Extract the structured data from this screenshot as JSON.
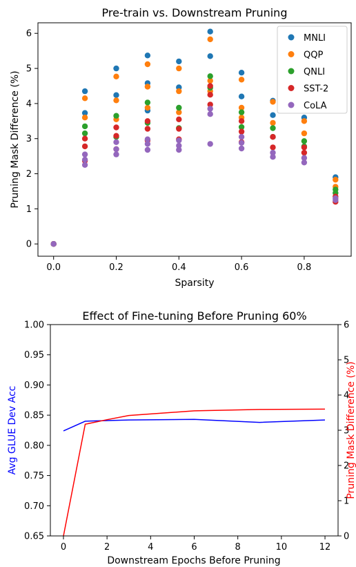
{
  "chart_data": [
    {
      "type": "scatter",
      "title": "Pre-train vs. Downstream Pruning",
      "xlabel": "Sparsity",
      "ylabel": "Pruning Mask Difference (%)",
      "xlim": [
        -0.05,
        0.95
      ],
      "ylim": [
        -0.35,
        6.3
      ],
      "xticks": [
        0.0,
        0.2,
        0.4,
        0.6,
        0.8
      ],
      "xtick_labels": [
        "0.0",
        "0.2",
        "0.4",
        "0.6",
        "0.8"
      ],
      "yticks": [
        0,
        1,
        2,
        3,
        4,
        5,
        6
      ],
      "ytick_labels": [
        "0",
        "1",
        "2",
        "3",
        "4",
        "5",
        "6"
      ],
      "legend_position": "top-right",
      "series": [
        {
          "name": "MNLI",
          "color": "#1f77b4",
          "x": [
            0,
            0.1,
            0.1,
            0.2,
            0.2,
            0.3,
            0.3,
            0.3,
            0.4,
            0.4,
            0.5,
            0.5,
            0.6,
            0.6,
            0.7,
            0.7,
            0.8,
            0.9
          ],
          "y": [
            0,
            4.35,
            3.73,
            5.0,
            4.24,
            5.37,
            4.58,
            3.8,
            5.2,
            4.46,
            6.05,
            5.35,
            4.88,
            4.2,
            4.08,
            3.67,
            3.6,
            1.9
          ]
        },
        {
          "name": "QQP",
          "color": "#ff7f0e",
          "x": [
            0,
            0.1,
            0.1,
            0.2,
            0.2,
            0.2,
            0.3,
            0.3,
            0.3,
            0.4,
            0.4,
            0.4,
            0.5,
            0.5,
            0.5,
            0.6,
            0.6,
            0.6,
            0.7,
            0.7,
            0.8,
            0.8,
            0.9,
            0.9
          ],
          "y": [
            0,
            4.15,
            3.6,
            4.77,
            4.09,
            3.55,
            5.12,
            4.48,
            3.88,
            5.0,
            4.35,
            3.75,
            5.83,
            4.65,
            4.35,
            4.68,
            3.88,
            3.6,
            4.05,
            3.45,
            3.5,
            3.15,
            1.83,
            1.63
          ]
        },
        {
          "name": "QNLI",
          "color": "#2ca02c",
          "x": [
            0,
            0.1,
            0.1,
            0.2,
            0.2,
            0.3,
            0.3,
            0.4,
            0.4,
            0.5,
            0.5,
            0.6,
            0.6,
            0.7,
            0.7,
            0.8,
            0.8,
            0.9,
            0.9
          ],
          "y": [
            0,
            3.35,
            3.15,
            3.65,
            3.05,
            4.03,
            3.45,
            3.88,
            3.3,
            4.78,
            4.45,
            3.75,
            3.33,
            3.3,
            3.05,
            2.93,
            2.78,
            1.55,
            1.45
          ]
        },
        {
          "name": "SST-2",
          "color": "#d62728",
          "x": [
            0,
            0.1,
            0.1,
            0.1,
            0.2,
            0.2,
            0.2,
            0.3,
            0.3,
            0.3,
            0.4,
            0.4,
            0.4,
            0.5,
            0.5,
            0.5,
            0.6,
            0.6,
            0.6,
            0.7,
            0.7,
            0.8,
            0.8,
            0.9,
            0.9
          ],
          "y": [
            0,
            3.0,
            2.78,
            2.37,
            3.32,
            3.08,
            2.7,
            3.5,
            3.28,
            2.95,
            3.55,
            3.28,
            2.98,
            4.5,
            4.25,
            3.97,
            3.5,
            3.2,
            2.9,
            3.05,
            2.75,
            2.75,
            2.6,
            1.35,
            1.2
          ]
        },
        {
          "name": "CoLA",
          "color": "#9467bd",
          "x": [
            0,
            0.1,
            0.1,
            0.1,
            0.2,
            0.2,
            0.2,
            0.3,
            0.3,
            0.3,
            0.4,
            0.4,
            0.4,
            0.5,
            0.5,
            0.5,
            0.6,
            0.6,
            0.6,
            0.7,
            0.7,
            0.8,
            0.8,
            0.9,
            0.9
          ],
          "y": [
            0,
            2.55,
            2.4,
            2.25,
            2.9,
            2.7,
            2.55,
            2.98,
            2.85,
            2.68,
            2.95,
            2.8,
            2.68,
            3.85,
            3.7,
            2.85,
            3.05,
            2.88,
            2.72,
            2.6,
            2.48,
            2.45,
            2.32,
            1.3,
            1.25
          ]
        }
      ]
    },
    {
      "type": "line",
      "title": "Effect of Fine-tuning Before Pruning 60%",
      "xlabel": "Downstream Epochs Before Pruning",
      "ylabel": "Avg GLUE Dev Acc",
      "ylabel_right": "Pruning Mask Difference (%)",
      "xlim": [
        -0.6,
        12.6
      ],
      "ylim": [
        0.65,
        1.0
      ],
      "ylim_right": [
        0,
        6
      ],
      "xticks": [
        0,
        2,
        4,
        6,
        8,
        10,
        12
      ],
      "xtick_labels": [
        "0",
        "2",
        "4",
        "6",
        "8",
        "10",
        "12"
      ],
      "yticks": [
        0.65,
        0.7,
        0.75,
        0.8,
        0.85,
        0.9,
        0.95,
        1.0
      ],
      "ytick_labels": [
        "0.65",
        "0.70",
        "0.75",
        "0.80",
        "0.85",
        "0.90",
        "0.95",
        "1.00"
      ],
      "yticks_right": [
        0,
        1,
        2,
        3,
        4,
        5,
        6
      ],
      "ytick_labels_right": [
        "0",
        "1",
        "2",
        "3",
        "4",
        "5",
        "6"
      ],
      "left_axis_color": "#0000ff",
      "right_axis_color": "#ff0000",
      "series": [
        {
          "axis": "left",
          "color": "#0000ff",
          "x": [
            0,
            1,
            2,
            3,
            6,
            9,
            12
          ],
          "y": [
            0.824,
            0.84,
            0.841,
            0.842,
            0.843,
            0.838,
            0.842
          ]
        },
        {
          "axis": "right",
          "color": "#ff0000",
          "x": [
            0,
            1,
            2,
            3,
            6,
            9,
            12
          ],
          "y": [
            0,
            3.17,
            3.3,
            3.42,
            3.55,
            3.59,
            3.6
          ]
        }
      ]
    }
  ]
}
